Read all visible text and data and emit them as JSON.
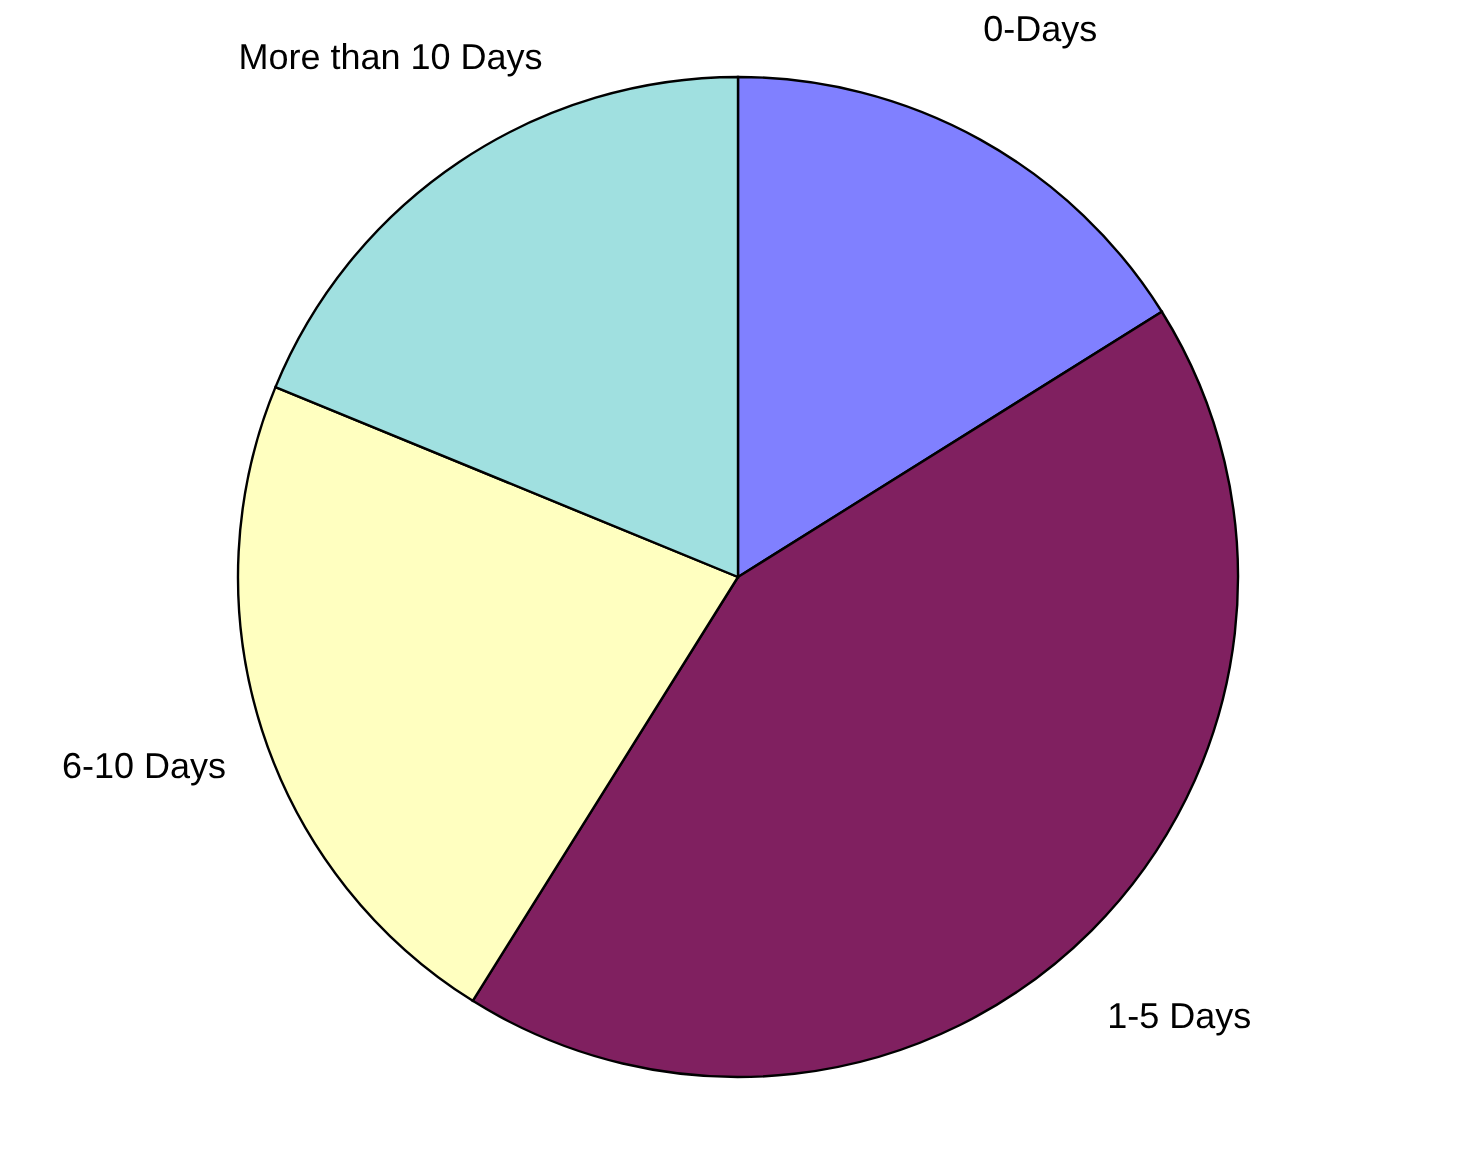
{
  "chart_data": {
    "type": "pie",
    "categories": [
      "0-Days",
      "1-5 Days",
      "6-10 Days",
      "More than 10 Days"
    ],
    "values": [
      16.1,
      42.8,
      22.3,
      18.8
    ],
    "colors": [
      "#8080ff",
      "#802060",
      "#ffffc0",
      "#a0e0e0"
    ],
    "legend": false
  }
}
